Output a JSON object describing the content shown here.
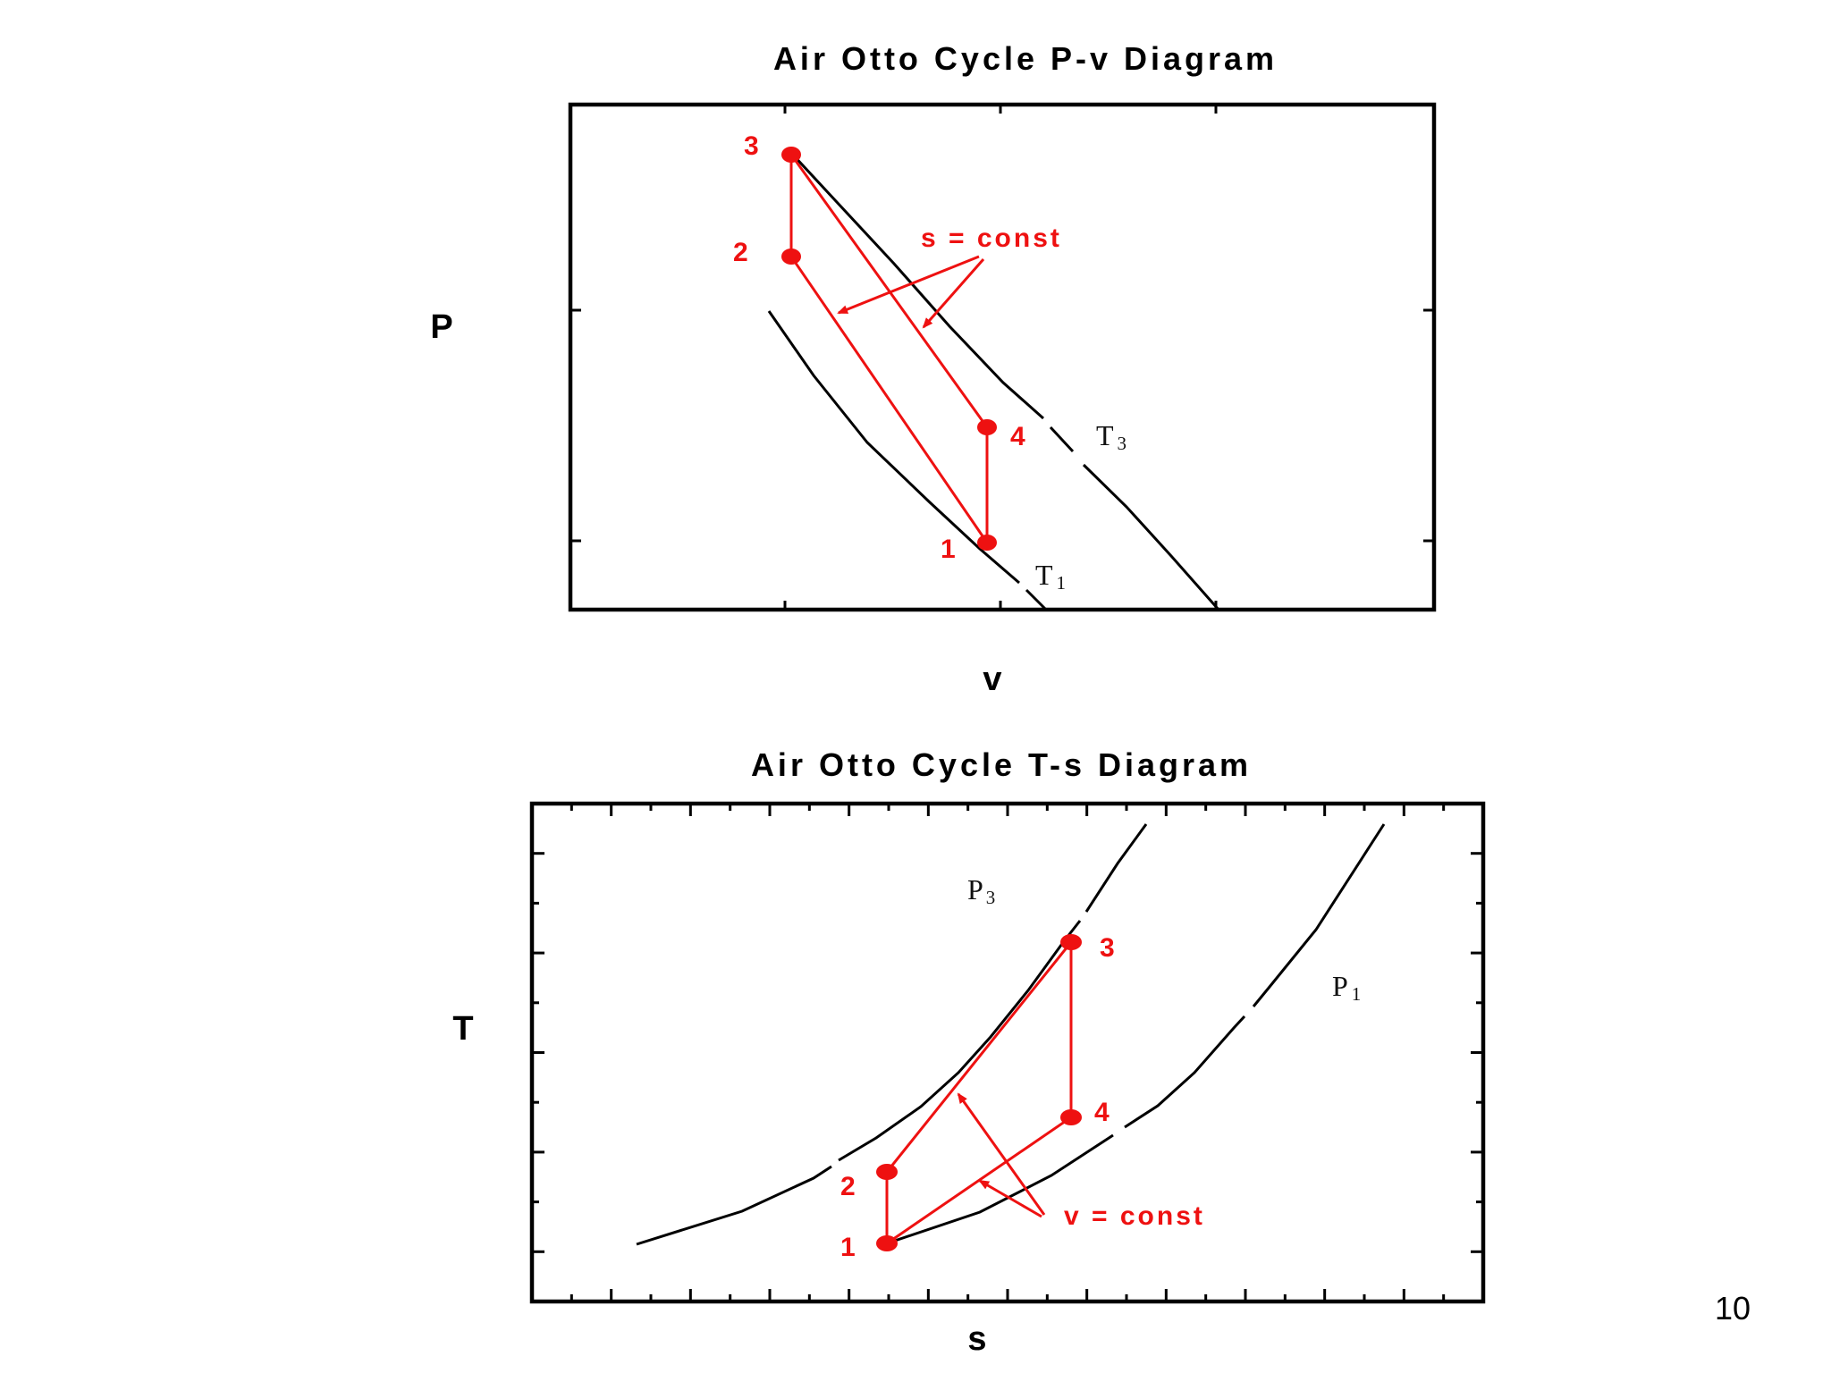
{
  "pv_diagram": {
    "title": "Air Otto Cycle P-v Diagram",
    "ylabel": "P",
    "xlabel": "v",
    "points": [
      "1",
      "2",
      "3",
      "4"
    ],
    "annotation": "s = const",
    "isotherms": [
      {
        "label": "T",
        "subscript": "3"
      },
      {
        "label": "T",
        "subscript": "1"
      }
    ]
  },
  "ts_diagram": {
    "title": "Air Otto Cycle T-s Diagram",
    "ylabel": "T",
    "xlabel": "s",
    "points": [
      "1",
      "2",
      "3",
      "4"
    ],
    "annotation": "v = const",
    "isobars": [
      {
        "label": "P",
        "subscript": "3"
      },
      {
        "label": "P",
        "subscript": "1"
      }
    ]
  },
  "colors": {
    "cycle": "#ee1111",
    "curves": "#000000"
  },
  "page_number": "10"
}
